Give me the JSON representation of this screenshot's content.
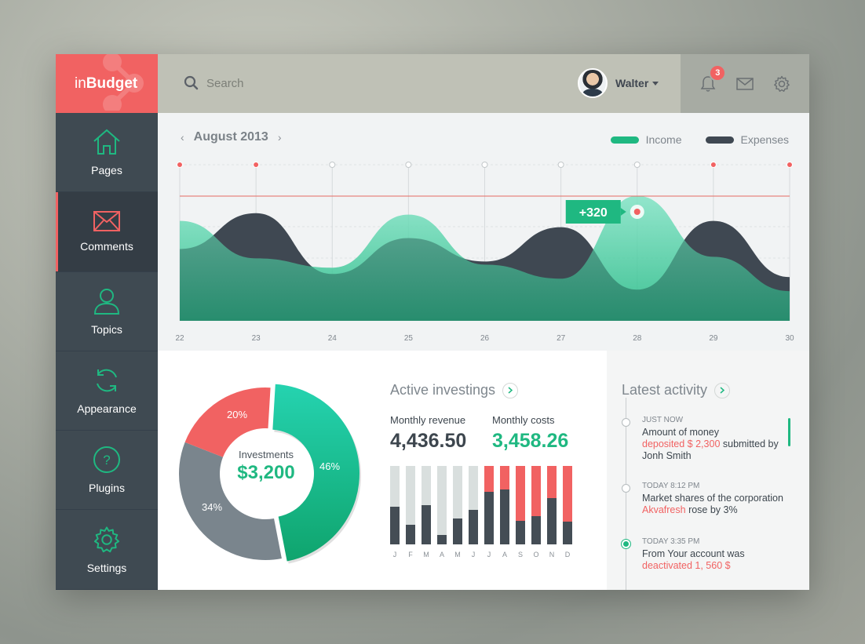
{
  "brand": {
    "light": "in",
    "bold": "Budget"
  },
  "search": {
    "placeholder": "Search"
  },
  "user": {
    "name": "Walter"
  },
  "notifications": {
    "count": "3"
  },
  "colors": {
    "accent": "#f16262",
    "income": "#1fb881",
    "expenses": "#3f4852",
    "sidebar": "#3f4a52"
  },
  "sidebar": {
    "items": [
      {
        "label": "Pages",
        "icon": "home-icon"
      },
      {
        "label": "Comments",
        "icon": "mail-icon",
        "active": true
      },
      {
        "label": "Topics",
        "icon": "user-icon"
      },
      {
        "label": "Appearance",
        "icon": "refresh-icon"
      },
      {
        "label": "Plugins",
        "icon": "question-icon"
      },
      {
        "label": "Settings",
        "icon": "gear-icon"
      }
    ]
  },
  "chart": {
    "month": "August 2013",
    "legend": {
      "income": "Income",
      "expenses": "Expenses"
    },
    "tooltip": "+320"
  },
  "chart_data": [
    {
      "type": "area",
      "x": [
        22,
        23,
        24,
        25,
        26,
        27,
        28,
        29,
        30
      ],
      "xlabels": [
        "22",
        "23",
        "24",
        "25",
        "26",
        "27",
        "28",
        "29",
        "30"
      ],
      "series": [
        {
          "name": "Income",
          "values": [
            128,
            80,
            68,
            136,
            72,
            54,
            160,
            82,
            38
          ]
        },
        {
          "name": "Expenses",
          "values": [
            92,
            138,
            60,
            106,
            76,
            120,
            40,
            128,
            56
          ]
        }
      ],
      "ylim": [
        0,
        200
      ],
      "annotations": [
        {
          "x": 28,
          "label": "+320"
        }
      ]
    },
    {
      "type": "pie",
      "labels": [
        "46%",
        "34%",
        "20%"
      ],
      "values": [
        46,
        34,
        20
      ],
      "center_label": "Investments",
      "center_value": "$3,200"
    },
    {
      "type": "bar",
      "categories": [
        "J",
        "F",
        "M",
        "A",
        "M",
        "J",
        "J",
        "A",
        "S",
        "O",
        "N",
        "D"
      ],
      "values": [
        48,
        25,
        50,
        12,
        33,
        44,
        67,
        70,
        30,
        36,
        59,
        29
      ],
      "highlight_from": 6,
      "ylim": [
        0,
        100
      ]
    }
  ],
  "investing": {
    "title": "Active investings",
    "revenue_label": "Monthly revenue",
    "revenue_value": "4,436.50",
    "costs_label": "Monthly costs",
    "costs_value": "3,458.26"
  },
  "activity": {
    "title": "Latest activity",
    "entries": [
      {
        "time": "JUST NOW",
        "pre": "Amount of money",
        "hl": "deposited $ 2,300",
        "post": " submitted by Jonh Smith"
      },
      {
        "time": "TODAY 8:12 PM",
        "pre": "Market shares of the corporation ",
        "hl": "Akvafresh",
        "post": " rose by 3%"
      },
      {
        "time": "TODAY 3:35 PM",
        "pre": "From Your account was ",
        "hl": "deactivated 1, 560 $",
        "post": ""
      }
    ]
  }
}
